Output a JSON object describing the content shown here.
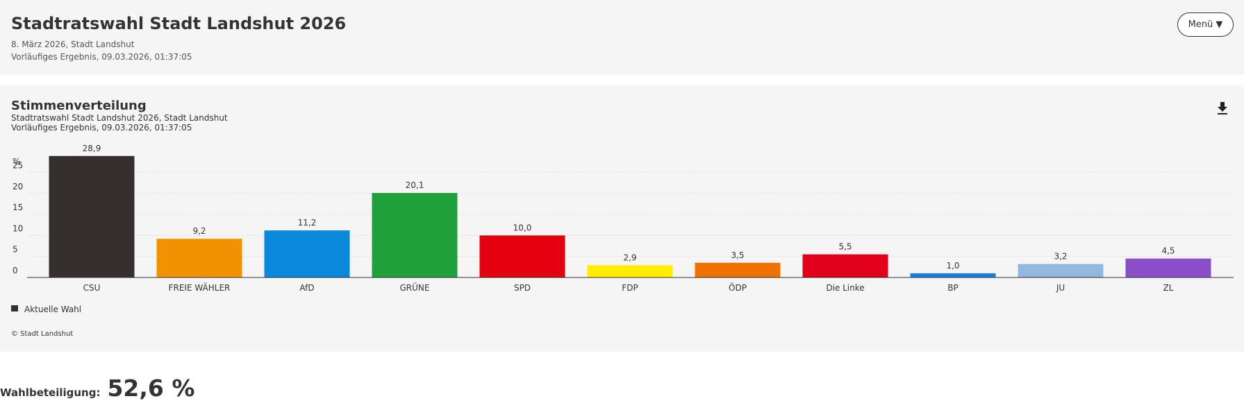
{
  "header": {
    "title": "Stadtratswahl Stadt Landshut 2026",
    "date": "8. März 2026, Stadt Landshut",
    "status": "Vorläufiges Ergebnis, 09.03.2026, 01:37:05",
    "menu": "Menü ▼"
  },
  "chart_data": {
    "type": "bar",
    "title": "Stimmenverteilung",
    "subtitle": [
      "Stadtratswahl Stadt Landshut 2026, Stadt Landshut",
      "Vorläufiges Ergebnis, 09.03.2026, 01:37:05"
    ],
    "y_label": "%",
    "categories": [
      "CSU",
      "FREIE WÄHLER",
      "AfD",
      "GRÜNE",
      "SPD",
      "FDP",
      "ÖDP",
      "Die Linke",
      "BP",
      "JU",
      "ZL"
    ],
    "series": [
      {
        "name": "Aktuelle Wahl",
        "color": "#33302e",
        "values": [
          28.9,
          9.2,
          11.2,
          20.1,
          10.0,
          2.9,
          3.5,
          5.5,
          1.0,
          3.2,
          4.5
        ],
        "value_labels": [
          "28,9",
          "9,2",
          "11,2",
          "20,1",
          "10,0",
          "2,9",
          "3,5",
          "5,5",
          "1,0",
          "3,2",
          "4,5"
        ],
        "colors": [
          "#33302e",
          "#f39200",
          "#0a88dc",
          "#1fa03a",
          "#e3000f",
          "#ffed00",
          "#ef7100",
          "#e2001a",
          "#1a7de0",
          "#92b8dc",
          "#8a4fc8"
        ]
      }
    ],
    "ylim": [
      0,
      30
    ],
    "yticks": [
      0,
      5,
      10,
      15,
      20,
      25
    ],
    "grid": true,
    "source": "© Stadt Landshut"
  },
  "turnout": {
    "label": "Wahlbeteiligung:",
    "value": "52,6 %"
  }
}
